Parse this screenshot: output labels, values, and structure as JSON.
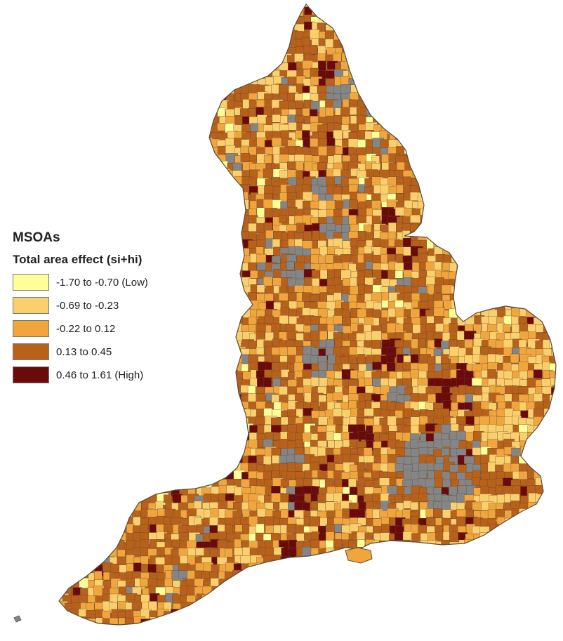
{
  "legend": {
    "title": "MSOAs",
    "subtitle": "Total area effect (si+hi)",
    "classes": [
      {
        "label": "-1.70 to -0.70 (Low)",
        "color": "#ffff99"
      },
      {
        "label": "-0.69 to -0.23",
        "color": "#fbd06c"
      },
      {
        "label": "-0.22 to 0.12",
        "color": "#f0a63d"
      },
      {
        "label": "0.13 to 0.45",
        "color": "#b8611b"
      },
      {
        "label": "0.46 to 1.61 (High)",
        "color": "#6b0a0a"
      }
    ]
  },
  "colors": {
    "missing": "#858585",
    "boundary": "#5a4a3a"
  }
}
